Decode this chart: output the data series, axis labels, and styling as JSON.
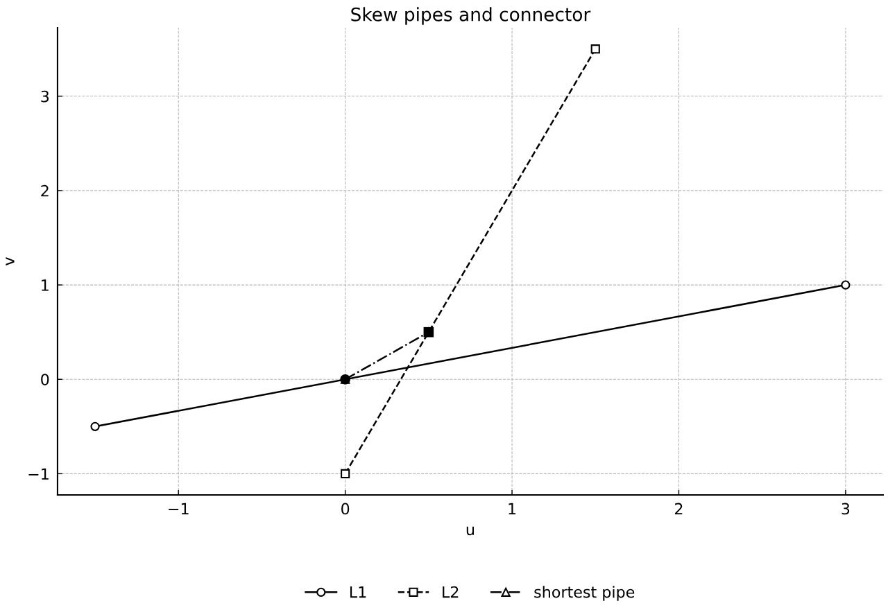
{
  "chart_data": {
    "type": "line",
    "title": "Skew pipes and connector",
    "xlabel": "u",
    "ylabel": "v",
    "series": [
      {
        "name": "L1",
        "color": "#000000",
        "x": [
          -1.5,
          3
        ],
        "values": [
          -0.5,
          1
        ],
        "marker": "circle",
        "line_style": "solid"
      },
      {
        "name": "L2",
        "color": "#000000",
        "x": [
          0,
          1.5
        ],
        "values": [
          -1,
          3.5
        ],
        "marker": "square",
        "line_style": "dashed"
      },
      {
        "name": "shortest pipe",
        "color": "#000000",
        "x": [
          0,
          0.5
        ],
        "values": [
          0,
          0.5
        ],
        "marker": "triangle",
        "line_style": "dashdot"
      },
      {
        "type": "scatter",
        "color": "#000000",
        "x": [
          0
        ],
        "values": [
          0
        ],
        "marker": "circle"
      },
      {
        "type": "scatter",
        "color": "#000000",
        "x": [
          0.5
        ],
        "values": [
          0.5
        ],
        "marker": "square"
      }
    ],
    "xlim": [
      -1.725,
      3.225
    ],
    "ylim": [
      -1.225,
      3.725
    ],
    "xticks": [
      {
        "value": -1,
        "label": "−1"
      },
      0,
      1,
      2,
      3
    ],
    "yticks": [
      {
        "value": -1,
        "label": "−1"
      },
      0,
      1,
      2,
      3
    ],
    "grid": true,
    "legend": "bottom"
  }
}
